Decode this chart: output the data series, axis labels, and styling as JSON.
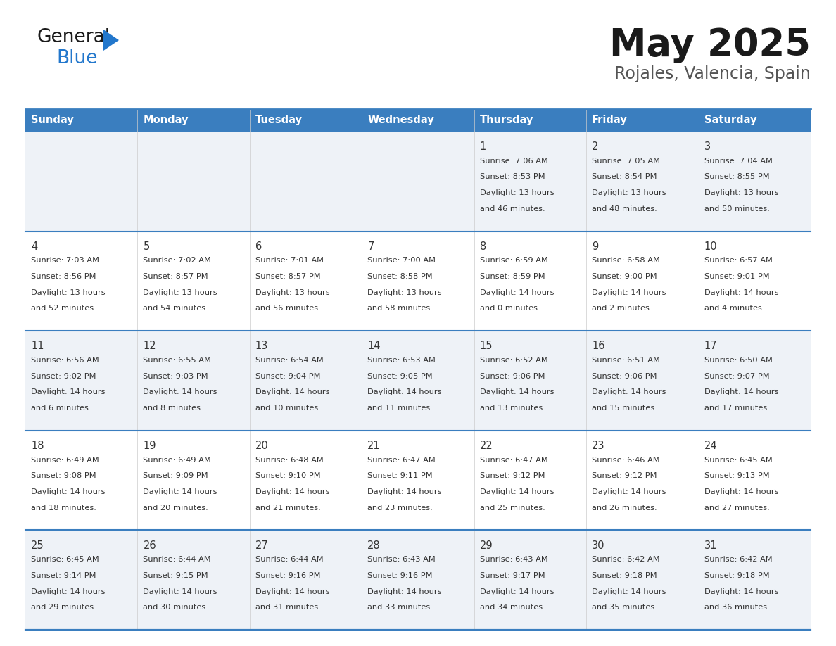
{
  "title": "May 2025",
  "subtitle": "Rojales, Valencia, Spain",
  "days_of_week": [
    "Sunday",
    "Monday",
    "Tuesday",
    "Wednesday",
    "Thursday",
    "Friday",
    "Saturday"
  ],
  "header_bg": "#3a7ebf",
  "header_text_color": "#ffffff",
  "row_bg_odd": "#eef2f7",
  "row_bg_even": "#ffffff",
  "cell_text_color": "#333333",
  "border_color": "#3a7ebf",
  "calendar_data": [
    [
      null,
      null,
      null,
      null,
      {
        "day": 1,
        "sunrise": "7:06 AM",
        "sunset": "8:53 PM",
        "daylight": "13 hours and 46 minutes"
      },
      {
        "day": 2,
        "sunrise": "7:05 AM",
        "sunset": "8:54 PM",
        "daylight": "13 hours and 48 minutes"
      },
      {
        "day": 3,
        "sunrise": "7:04 AM",
        "sunset": "8:55 PM",
        "daylight": "13 hours and 50 minutes"
      }
    ],
    [
      {
        "day": 4,
        "sunrise": "7:03 AM",
        "sunset": "8:56 PM",
        "daylight": "13 hours and 52 minutes"
      },
      {
        "day": 5,
        "sunrise": "7:02 AM",
        "sunset": "8:57 PM",
        "daylight": "13 hours and 54 minutes"
      },
      {
        "day": 6,
        "sunrise": "7:01 AM",
        "sunset": "8:57 PM",
        "daylight": "13 hours and 56 minutes"
      },
      {
        "day": 7,
        "sunrise": "7:00 AM",
        "sunset": "8:58 PM",
        "daylight": "13 hours and 58 minutes"
      },
      {
        "day": 8,
        "sunrise": "6:59 AM",
        "sunset": "8:59 PM",
        "daylight": "14 hours and 0 minutes"
      },
      {
        "day": 9,
        "sunrise": "6:58 AM",
        "sunset": "9:00 PM",
        "daylight": "14 hours and 2 minutes"
      },
      {
        "day": 10,
        "sunrise": "6:57 AM",
        "sunset": "9:01 PM",
        "daylight": "14 hours and 4 minutes"
      }
    ],
    [
      {
        "day": 11,
        "sunrise": "6:56 AM",
        "sunset": "9:02 PM",
        "daylight": "14 hours and 6 minutes"
      },
      {
        "day": 12,
        "sunrise": "6:55 AM",
        "sunset": "9:03 PM",
        "daylight": "14 hours and 8 minutes"
      },
      {
        "day": 13,
        "sunrise": "6:54 AM",
        "sunset": "9:04 PM",
        "daylight": "14 hours and 10 minutes"
      },
      {
        "day": 14,
        "sunrise": "6:53 AM",
        "sunset": "9:05 PM",
        "daylight": "14 hours and 11 minutes"
      },
      {
        "day": 15,
        "sunrise": "6:52 AM",
        "sunset": "9:06 PM",
        "daylight": "14 hours and 13 minutes"
      },
      {
        "day": 16,
        "sunrise": "6:51 AM",
        "sunset": "9:06 PM",
        "daylight": "14 hours and 15 minutes"
      },
      {
        "day": 17,
        "sunrise": "6:50 AM",
        "sunset": "9:07 PM",
        "daylight": "14 hours and 17 minutes"
      }
    ],
    [
      {
        "day": 18,
        "sunrise": "6:49 AM",
        "sunset": "9:08 PM",
        "daylight": "14 hours and 18 minutes"
      },
      {
        "day": 19,
        "sunrise": "6:49 AM",
        "sunset": "9:09 PM",
        "daylight": "14 hours and 20 minutes"
      },
      {
        "day": 20,
        "sunrise": "6:48 AM",
        "sunset": "9:10 PM",
        "daylight": "14 hours and 21 minutes"
      },
      {
        "day": 21,
        "sunrise": "6:47 AM",
        "sunset": "9:11 PM",
        "daylight": "14 hours and 23 minutes"
      },
      {
        "day": 22,
        "sunrise": "6:47 AM",
        "sunset": "9:12 PM",
        "daylight": "14 hours and 25 minutes"
      },
      {
        "day": 23,
        "sunrise": "6:46 AM",
        "sunset": "9:12 PM",
        "daylight": "14 hours and 26 minutes"
      },
      {
        "day": 24,
        "sunrise": "6:45 AM",
        "sunset": "9:13 PM",
        "daylight": "14 hours and 27 minutes"
      }
    ],
    [
      {
        "day": 25,
        "sunrise": "6:45 AM",
        "sunset": "9:14 PM",
        "daylight": "14 hours and 29 minutes"
      },
      {
        "day": 26,
        "sunrise": "6:44 AM",
        "sunset": "9:15 PM",
        "daylight": "14 hours and 30 minutes"
      },
      {
        "day": 27,
        "sunrise": "6:44 AM",
        "sunset": "9:16 PM",
        "daylight": "14 hours and 31 minutes"
      },
      {
        "day": 28,
        "sunrise": "6:43 AM",
        "sunset": "9:16 PM",
        "daylight": "14 hours and 33 minutes"
      },
      {
        "day": 29,
        "sunrise": "6:43 AM",
        "sunset": "9:17 PM",
        "daylight": "14 hours and 34 minutes"
      },
      {
        "day": 30,
        "sunrise": "6:42 AM",
        "sunset": "9:18 PM",
        "daylight": "14 hours and 35 minutes"
      },
      {
        "day": 31,
        "sunrise": "6:42 AM",
        "sunset": "9:18 PM",
        "daylight": "14 hours and 36 minutes"
      }
    ]
  ],
  "logo_color_general": "#1a1a1a",
  "logo_color_blue": "#2277cc"
}
